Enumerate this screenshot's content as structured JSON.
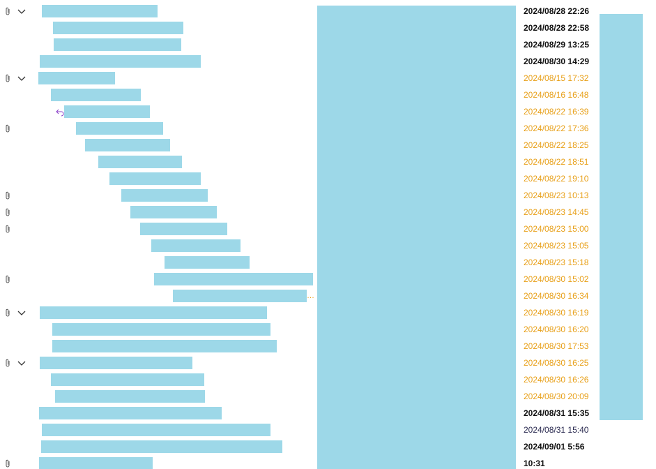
{
  "rows": [
    {
      "date": "2024/08/28 22:26",
      "style": "bold",
      "attachment": true,
      "expand": true
    },
    {
      "date": "2024/08/28 22:58",
      "style": "bold"
    },
    {
      "date": "2024/08/29 13:25",
      "style": "bold"
    },
    {
      "date": "2024/08/30 14:29",
      "style": "bold"
    },
    {
      "date": "2024/08/15 17:32",
      "style": "orange",
      "attachment": true,
      "expand": true
    },
    {
      "date": "2024/08/16 16:48",
      "style": "orange"
    },
    {
      "date": "2024/08/22 16:39",
      "style": "orange",
      "reply": true
    },
    {
      "date": "2024/08/22 17:36",
      "style": "orange",
      "attachment": true
    },
    {
      "date": "2024/08/22 18:25",
      "style": "orange"
    },
    {
      "date": "2024/08/22 18:51",
      "style": "orange"
    },
    {
      "date": "2024/08/22 19:10",
      "style": "orange"
    },
    {
      "date": "2024/08/23 10:13",
      "style": "orange",
      "attachment": true
    },
    {
      "date": "2024/08/23 14:45",
      "style": "orange",
      "attachment": true
    },
    {
      "date": "2024/08/23 15:00",
      "style": "orange",
      "attachment": true
    },
    {
      "date": "2024/08/23 15:05",
      "style": "orange"
    },
    {
      "date": "2024/08/23 15:18",
      "style": "orange"
    },
    {
      "date": "2024/08/30 15:02",
      "style": "orange",
      "attachment": true
    },
    {
      "date": "2024/08/30 16:34",
      "style": "orange",
      "truncation": "…"
    },
    {
      "date": "2024/08/30 16:19",
      "style": "orange",
      "attachment": true,
      "expand": true
    },
    {
      "date": "2024/08/30 16:20",
      "style": "orange"
    },
    {
      "date": "2024/08/30 17:53",
      "style": "orange"
    },
    {
      "date": "2024/08/30 16:25",
      "style": "orange",
      "attachment": true,
      "expand": true
    },
    {
      "date": "2024/08/30 16:26",
      "style": "orange"
    },
    {
      "date": "2024/08/30 20:09",
      "style": "orange"
    },
    {
      "date": "2024/08/31 15:35",
      "style": "bold"
    },
    {
      "date": "2024/08/31 15:40",
      "style": "normal"
    },
    {
      "date": "2024/09/01 5:56",
      "style": "bold"
    },
    {
      "date": "10:31",
      "style": "bold",
      "attachment": true
    }
  ]
}
